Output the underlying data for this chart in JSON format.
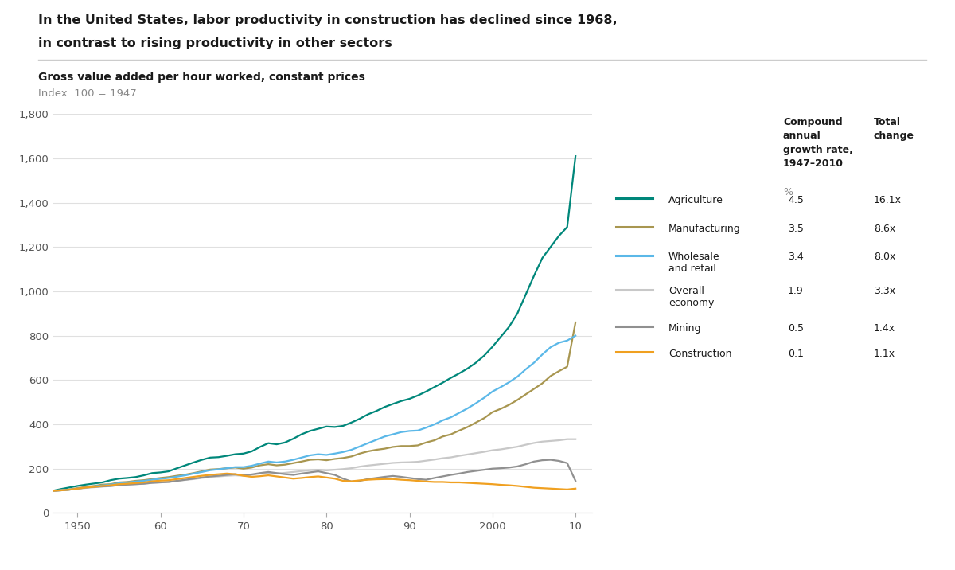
{
  "title_line1": "In the United States, labor productivity in construction has declined since 1968,",
  "title_line2": "in contrast to rising productivity in other sectors",
  "subtitle": "Gross value added per hour worked, constant prices",
  "index_label": "Index: 100 = 1947",
  "background_color": "#ffffff",
  "title_color": "#1a1a1a",
  "index_color": "#888888",
  "ylim": [
    0,
    1800
  ],
  "yticks": [
    0,
    200,
    400,
    600,
    800,
    1000,
    1200,
    1400,
    1600,
    1800
  ],
  "xlim": [
    1947,
    2012
  ],
  "xticks": [
    1950,
    1960,
    1970,
    1980,
    1990,
    2000,
    2010
  ],
  "xticklabels": [
    "1950",
    "60",
    "70",
    "80",
    "90",
    "2000",
    "10"
  ],
  "series": {
    "agriculture": {
      "color": "#00877A",
      "label": "Agriculture",
      "cagr": "4.5",
      "total": "16.1x",
      "linewidth": 1.6
    },
    "manufacturing": {
      "color": "#A89650",
      "label": "Manufacturing",
      "cagr": "3.5",
      "total": "8.6x",
      "linewidth": 1.6
    },
    "wholesale": {
      "color": "#5BB8E8",
      "label": "Wholesale\nand retail",
      "cagr": "3.4",
      "total": "8.0x",
      "linewidth": 1.6
    },
    "overall": {
      "color": "#C8C8C8",
      "label": "Overall\neconomy",
      "cagr": "1.9",
      "total": "3.3x",
      "linewidth": 1.6
    },
    "mining": {
      "color": "#909090",
      "label": "Mining",
      "cagr": "0.5",
      "total": "1.4x",
      "linewidth": 1.6
    },
    "construction": {
      "color": "#F0A020",
      "label": "Construction",
      "cagr": "0.1",
      "total": "1.1x",
      "linewidth": 1.6
    }
  },
  "years": [
    1947,
    1948,
    1949,
    1950,
    1951,
    1952,
    1953,
    1954,
    1955,
    1956,
    1957,
    1958,
    1959,
    1960,
    1961,
    1962,
    1963,
    1964,
    1965,
    1966,
    1967,
    1968,
    1969,
    1970,
    1971,
    1972,
    1973,
    1974,
    1975,
    1976,
    1977,
    1978,
    1979,
    1980,
    1981,
    1982,
    1983,
    1984,
    1985,
    1986,
    1987,
    1988,
    1989,
    1990,
    1991,
    1992,
    1993,
    1994,
    1995,
    1996,
    1997,
    1998,
    1999,
    2000,
    2001,
    2002,
    2003,
    2004,
    2005,
    2006,
    2007,
    2008,
    2009,
    2010
  ],
  "agriculture": [
    100,
    108,
    115,
    122,
    128,
    133,
    138,
    148,
    155,
    158,
    162,
    170,
    180,
    183,
    188,
    202,
    215,
    228,
    240,
    250,
    252,
    258,
    265,
    268,
    278,
    298,
    315,
    310,
    318,
    335,
    355,
    370,
    380,
    390,
    388,
    393,
    408,
    425,
    445,
    460,
    478,
    492,
    505,
    515,
    530,
    548,
    568,
    588,
    610,
    630,
    652,
    678,
    710,
    750,
    795,
    840,
    900,
    985,
    1070,
    1150,
    1200,
    1250,
    1290,
    1610
  ],
  "manufacturing": [
    100,
    103,
    106,
    112,
    118,
    122,
    128,
    130,
    138,
    140,
    145,
    148,
    153,
    158,
    162,
    168,
    173,
    180,
    188,
    196,
    198,
    202,
    205,
    200,
    205,
    215,
    220,
    215,
    218,
    225,
    232,
    240,
    242,
    238,
    244,
    248,
    255,
    268,
    278,
    285,
    290,
    298,
    302,
    302,
    305,
    318,
    328,
    345,
    355,
    372,
    388,
    408,
    428,
    455,
    470,
    488,
    510,
    535,
    560,
    585,
    618,
    640,
    660,
    860
  ],
  "wholesale": [
    100,
    102,
    105,
    110,
    115,
    120,
    124,
    128,
    134,
    138,
    142,
    145,
    150,
    154,
    158,
    164,
    170,
    178,
    185,
    193,
    197,
    202,
    207,
    207,
    213,
    223,
    232,
    228,
    232,
    240,
    250,
    260,
    265,
    262,
    268,
    275,
    285,
    300,
    315,
    330,
    345,
    355,
    365,
    370,
    372,
    385,
    400,
    418,
    432,
    452,
    472,
    495,
    520,
    548,
    568,
    590,
    615,
    648,
    678,
    715,
    748,
    768,
    778,
    800
  ],
  "overall": [
    100,
    103,
    106,
    109,
    113,
    116,
    119,
    121,
    126,
    128,
    130,
    132,
    136,
    138,
    140,
    145,
    149,
    153,
    158,
    163,
    165,
    168,
    170,
    168,
    172,
    178,
    181,
    178,
    181,
    185,
    189,
    193,
    195,
    192,
    195,
    198,
    202,
    209,
    214,
    218,
    222,
    226,
    228,
    229,
    231,
    236,
    241,
    247,
    251,
    258,
    264,
    270,
    276,
    283,
    287,
    293,
    299,
    308,
    316,
    322,
    325,
    328,
    333,
    333
  ],
  "mining": [
    100,
    102,
    105,
    110,
    115,
    118,
    120,
    122,
    126,
    128,
    130,
    132,
    136,
    138,
    140,
    145,
    150,
    155,
    160,
    165,
    168,
    172,
    175,
    170,
    174,
    180,
    185,
    180,
    175,
    172,
    178,
    183,
    188,
    180,
    172,
    155,
    142,
    145,
    153,
    158,
    163,
    167,
    163,
    158,
    153,
    150,
    158,
    165,
    172,
    178,
    185,
    190,
    195,
    200,
    202,
    205,
    210,
    220,
    232,
    238,
    240,
    235,
    225,
    145
  ],
  "construction": [
    100,
    102,
    105,
    110,
    115,
    118,
    122,
    125,
    130,
    132,
    135,
    138,
    143,
    146,
    148,
    153,
    158,
    163,
    168,
    172,
    175,
    178,
    175,
    168,
    163,
    166,
    170,
    165,
    160,
    155,
    158,
    162,
    165,
    160,
    155,
    145,
    143,
    147,
    150,
    152,
    153,
    153,
    150,
    148,
    145,
    142,
    140,
    140,
    138,
    138,
    136,
    134,
    132,
    130,
    127,
    125,
    122,
    118,
    114,
    112,
    110,
    108,
    106,
    110
  ]
}
